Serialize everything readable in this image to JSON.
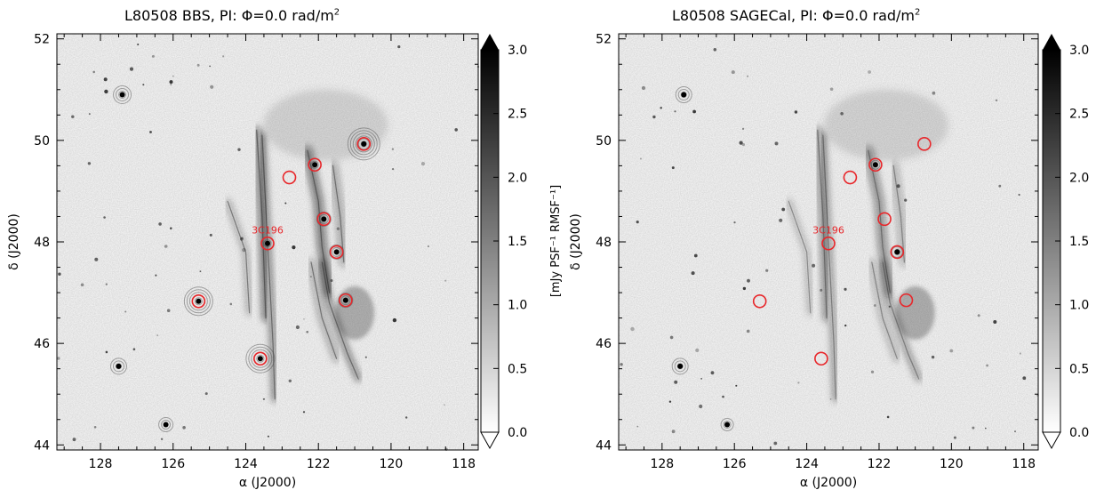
{
  "panels": [
    {
      "id": "bbs",
      "title_prefix": "L80508 BBS, PI: ",
      "title_phi": "Φ=0.0 rad/m",
      "title_sup": "2",
      "source_label": "3C196",
      "circles": [
        {
          "ra": 123.4,
          "dec": 47.97
        },
        {
          "ra": 122.8,
          "dec": 49.27
        },
        {
          "ra": 122.1,
          "dec": 49.52
        },
        {
          "ra": 120.75,
          "dec": 49.93
        },
        {
          "ra": 121.85,
          "dec": 48.45
        },
        {
          "ra": 121.5,
          "dec": 47.8
        },
        {
          "ra": 121.25,
          "dec": 46.85
        },
        {
          "ra": 125.3,
          "dec": 46.83
        },
        {
          "ra": 123.6,
          "dec": 45.7
        }
      ],
      "bright_sources": [
        {
          "ra": 120.75,
          "dec": 49.93,
          "r": 18
        },
        {
          "ra": 125.3,
          "dec": 46.83,
          "r": 16
        },
        {
          "ra": 123.6,
          "dec": 45.7,
          "r": 16
        },
        {
          "ra": 127.4,
          "dec": 50.9,
          "r": 10
        },
        {
          "ra": 127.5,
          "dec": 45.55,
          "r": 9
        },
        {
          "ra": 126.2,
          "dec": 44.4,
          "r": 8
        },
        {
          "ra": 121.85,
          "dec": 48.45,
          "r": 8
        },
        {
          "ra": 121.5,
          "dec": 47.8,
          "r": 8
        },
        {
          "ra": 121.25,
          "dec": 46.85,
          "r": 8
        },
        {
          "ra": 122.1,
          "dec": 49.52,
          "r": 7
        },
        {
          "ra": 123.4,
          "dec": 47.97,
          "r": 7
        }
      ]
    },
    {
      "id": "sagecal",
      "title_prefix": "L80508 SAGECal, PI: ",
      "title_phi": "Φ=0.0 rad/m",
      "title_sup": "2",
      "source_label": "3C196",
      "circles": [
        {
          "ra": 123.4,
          "dec": 47.97
        },
        {
          "ra": 122.8,
          "dec": 49.27
        },
        {
          "ra": 122.1,
          "dec": 49.52
        },
        {
          "ra": 120.75,
          "dec": 49.93
        },
        {
          "ra": 121.85,
          "dec": 48.45
        },
        {
          "ra": 121.5,
          "dec": 47.8
        },
        {
          "ra": 121.25,
          "dec": 46.85
        },
        {
          "ra": 125.3,
          "dec": 46.83
        },
        {
          "ra": 123.6,
          "dec": 45.7
        }
      ],
      "bright_sources": [
        {
          "ra": 127.4,
          "dec": 50.9,
          "r": 9
        },
        {
          "ra": 127.5,
          "dec": 45.55,
          "r": 9
        },
        {
          "ra": 126.2,
          "dec": 44.4,
          "r": 7
        },
        {
          "ra": 121.5,
          "dec": 47.8,
          "r": 6
        },
        {
          "ra": 122.1,
          "dec": 49.52,
          "r": 5
        }
      ]
    }
  ],
  "x_axis": {
    "label": "α (J2000)",
    "ticks": [
      128,
      126,
      124,
      122,
      120,
      118
    ],
    "range": [
      129.2,
      117.6
    ]
  },
  "y_axis": {
    "label": "δ (J2000)",
    "ticks": [
      44,
      46,
      48,
      50,
      52
    ],
    "range": [
      43.9,
      52.1
    ]
  },
  "colorbar": {
    "ticks": [
      "0.0",
      "0.5",
      "1.0",
      "1.5",
      "2.0",
      "2.5",
      "3.0"
    ],
    "label": "[mJy PSF⁻¹ RMSF⁻¹]",
    "range": [
      0,
      3
    ]
  },
  "colors": {
    "circle": "#e8262a",
    "image_bg": "#f3f3f3",
    "feature": "#1a1a1a"
  }
}
